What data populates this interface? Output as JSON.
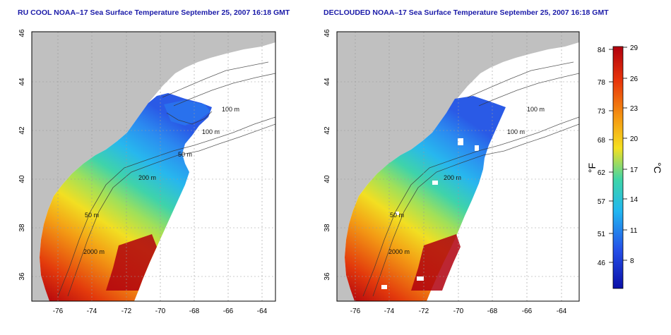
{
  "left_map": {
    "title": "RU COOL NOAA–17 Sea Surface Temperature September 25, 2007 16:18 GMT",
    "contour_labels": [
      "100 m",
      "100 m",
      "50 m",
      "200 m",
      "50 m",
      "2000 m"
    ]
  },
  "right_map": {
    "title": "DECLOUDED NOAA–17 Sea Surface Temperature September 25, 2007 16:18 GMT",
    "contour_labels": [
      "100 m",
      "100 m",
      "200 m",
      "50 m",
      "2000 m"
    ]
  },
  "axes": {
    "lat_ticks": [
      "36",
      "38",
      "40",
      "42",
      "44",
      "46"
    ],
    "lon_ticks": [
      "-76",
      "-74",
      "-72",
      "-70",
      "-68",
      "-66",
      "-64"
    ]
  },
  "colorbar": {
    "fahrenheit_unit": "°F",
    "celsius_unit": "°C",
    "fahrenheit_ticks": [
      "84",
      "78",
      "73",
      "68",
      "62",
      "57",
      "51",
      "46"
    ],
    "celsius_ticks": [
      "29",
      "26",
      "23",
      "20",
      "17",
      "14",
      "11",
      "8"
    ],
    "colors": [
      "#b0000e",
      "#e8340a",
      "#f59b12",
      "#f5e020",
      "#3ed5a8",
      "#22b7f0",
      "#2550e8",
      "#0a0fa8"
    ]
  }
}
